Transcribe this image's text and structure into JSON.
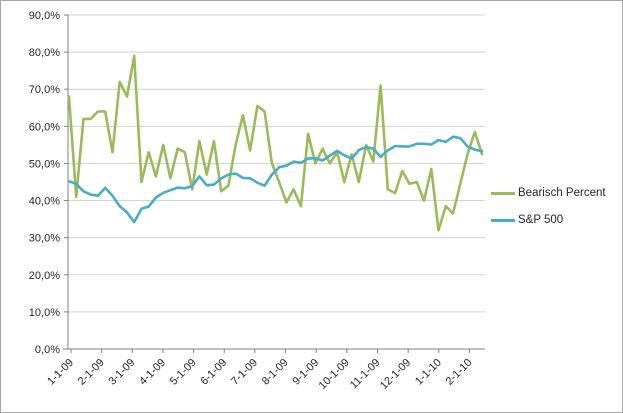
{
  "chart_data": {
    "type": "line",
    "title": "",
    "xlabel": "",
    "ylabel": "",
    "x_interval": "weekly",
    "x_tick_labels": [
      "1-1-09",
      "2-1-09",
      "3-1-09",
      "4-1-09",
      "5-1-09",
      "6-1-09",
      "7-1-09",
      "8-1-09",
      "9-1-09",
      "10-1-09",
      "11-1-09",
      "12-1-09",
      "1-1-10",
      "2-1-10"
    ],
    "y_tick_labels": [
      "0,0%",
      "10,0%",
      "20,0%",
      "30,0%",
      "40,0%",
      "50,0%",
      "60,0%",
      "70,0%",
      "80,0%",
      "90,0%"
    ],
    "ylim": [
      0,
      90
    ],
    "y_step": 10,
    "y_unit": "%",
    "grid": "horizontal",
    "legend_position": "right",
    "series": [
      {
        "name": "Bearisch Percent",
        "color": "#9BBB59",
        "values": [
          68,
          41,
          62,
          62,
          64,
          64,
          53,
          72,
          68,
          79,
          45,
          53,
          46.5,
          55,
          46,
          54,
          53,
          43,
          56,
          47,
          56,
          42.5,
          44,
          55,
          63,
          53.5,
          65.5,
          64,
          50,
          45,
          39.5,
          43,
          38.5,
          58,
          50,
          54,
          50,
          53,
          45,
          52.5,
          45,
          55,
          50.5,
          71,
          43,
          42,
          48,
          44.5,
          45,
          40,
          48.5,
          32,
          38.5,
          36.5,
          44.5,
          52.5,
          58.5,
          52.5
        ]
      },
      {
        "name": "S&P 500",
        "color": "#4BACC6",
        "values": [
          45.2,
          44.5,
          42.5,
          41.6,
          41.3,
          43.4,
          41.3,
          38.5,
          36.8,
          34.2,
          37.8,
          38.4,
          40.8,
          42.1,
          42.8,
          43.5,
          43.3,
          43.9,
          46.5,
          44.1,
          44.3,
          46.0,
          47.0,
          47.3,
          46.1,
          46.0,
          44.8,
          44.0,
          47.0,
          49.0,
          49.4,
          50.5,
          50.2,
          51.3,
          51.4,
          50.8,
          52.1,
          53.4,
          52.2,
          51.3,
          53.6,
          54.4,
          54.0,
          51.8,
          53.5,
          54.7,
          54.6,
          54.6,
          55.3,
          55.3,
          55.1,
          56.3,
          55.8,
          57.2,
          56.8,
          54.6,
          53.7,
          53.3
        ]
      }
    ]
  },
  "legend": {
    "items": [
      {
        "label": "Bearisch Percent",
        "swatch": "line"
      },
      {
        "label": "S&P 500",
        "swatch": "line"
      }
    ]
  },
  "style": {
    "background": "#ffffff",
    "frame_border": "#a6a6a6",
    "gridline_color": "#d3d3d3",
    "axis_color": "#808080",
    "tick_label_color": "#262626",
    "series1_color": "#9BBB59",
    "series2_color": "#4BACC6"
  }
}
